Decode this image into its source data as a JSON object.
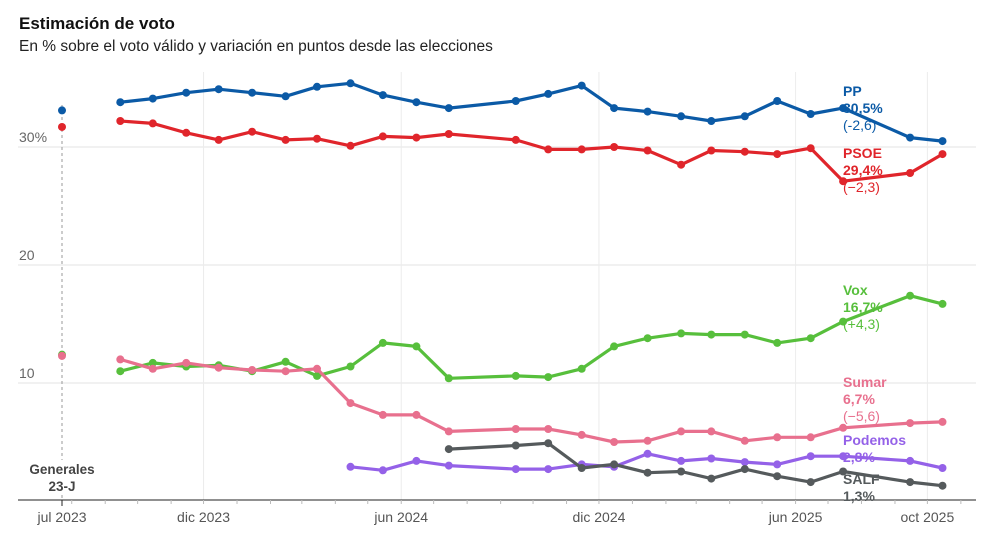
{
  "title": "Estimación de voto",
  "subtitle": "En % sobre el voto válido y variación en puntos desde las elecciones",
  "chart_data": {
    "type": "line",
    "title": "Estimación de voto",
    "subtitle": "En % sobre el voto válido y variación en puntos desde las elecciones",
    "xlabel": "",
    "ylabel": "",
    "ylim": [
      1,
      36
    ],
    "xlim": [
      "2023-07-23",
      "2025-11-15"
    ],
    "y_ticks": [
      {
        "value": 30,
        "label": "30%"
      },
      {
        "value": 20,
        "label": "20"
      },
      {
        "value": 10,
        "label": "10"
      }
    ],
    "x_ticks": [
      {
        "date": "2023-07-23",
        "label": "jul 2023"
      },
      {
        "date": "2023-12-01",
        "label": "dic 2023"
      },
      {
        "date": "2024-06-01",
        "label": "jun 2024"
      },
      {
        "date": "2024-12-01",
        "label": "dic 2024"
      },
      {
        "date": "2025-06-01",
        "label": "jun 2025"
      },
      {
        "date": "2025-10-01",
        "label": "oct 2025"
      }
    ],
    "grid": true,
    "election": {
      "date": "2023-07-23",
      "label_lines": [
        "Generales",
        "23-J"
      ],
      "results": [
        {
          "name": "PP",
          "value": 33.1,
          "color": "#0b5aa6"
        },
        {
          "name": "PSOE",
          "value": 31.7,
          "color": "#e0252b"
        },
        {
          "name": "Vox",
          "value": 12.4,
          "color": "#57bf3c"
        },
        {
          "name": "Sumar",
          "value": 12.3,
          "color": "#e8708e"
        }
      ]
    },
    "series": [
      {
        "name": "PP",
        "value_label": "30,5%",
        "change_label": "(-2,6)",
        "color": "#0b5aa6",
        "points": [
          [
            "2023-09-15",
            33.8
          ],
          [
            "2023-10-15",
            34.1
          ],
          [
            "2023-11-15",
            34.6
          ],
          [
            "2023-12-15",
            34.9
          ],
          [
            "2024-01-15",
            34.6
          ],
          [
            "2024-02-15",
            34.3
          ],
          [
            "2024-03-15",
            35.1
          ],
          [
            "2024-04-15",
            35.4
          ],
          [
            "2024-05-15",
            34.4
          ],
          [
            "2024-06-15",
            33.8
          ],
          [
            "2024-07-15",
            33.3
          ],
          [
            "2024-09-15",
            33.9
          ],
          [
            "2024-10-15",
            34.5
          ],
          [
            "2024-11-15",
            35.2
          ],
          [
            "2024-12-15",
            33.3
          ],
          [
            "2025-01-15",
            33.0
          ],
          [
            "2025-02-15",
            32.6
          ],
          [
            "2025-03-15",
            32.2
          ],
          [
            "2025-04-15",
            32.6
          ],
          [
            "2025-05-15",
            33.9
          ],
          [
            "2025-06-15",
            32.8
          ],
          [
            "2025-07-15",
            33.3
          ],
          [
            "2025-09-15",
            30.8
          ],
          [
            "2025-10-15",
            30.5
          ]
        ]
      },
      {
        "name": "PSOE",
        "value_label": "29,4%",
        "change_label": "(−2,3)",
        "color": "#e0252b",
        "points": [
          [
            "2023-09-15",
            32.2
          ],
          [
            "2023-10-15",
            32.0
          ],
          [
            "2023-11-15",
            31.2
          ],
          [
            "2023-12-15",
            30.6
          ],
          [
            "2024-01-15",
            31.3
          ],
          [
            "2024-02-15",
            30.6
          ],
          [
            "2024-03-15",
            30.7
          ],
          [
            "2024-04-15",
            30.1
          ],
          [
            "2024-05-15",
            30.9
          ],
          [
            "2024-06-15",
            30.8
          ],
          [
            "2024-07-15",
            31.1
          ],
          [
            "2024-09-15",
            30.6
          ],
          [
            "2024-10-15",
            29.8
          ],
          [
            "2024-11-15",
            29.8
          ],
          [
            "2024-12-15",
            30.0
          ],
          [
            "2025-01-15",
            29.7
          ],
          [
            "2025-02-15",
            28.5
          ],
          [
            "2025-03-15",
            29.7
          ],
          [
            "2025-04-15",
            29.6
          ],
          [
            "2025-05-15",
            29.4
          ],
          [
            "2025-06-15",
            29.9
          ],
          [
            "2025-07-15",
            27.1
          ],
          [
            "2025-09-15",
            27.8
          ],
          [
            "2025-10-15",
            29.4
          ]
        ]
      },
      {
        "name": "Vox",
        "value_label": "16,7%",
        "change_label": "(+4,3)",
        "color": "#57bf3c",
        "points": [
          [
            "2023-09-15",
            11.0
          ],
          [
            "2023-10-15",
            11.7
          ],
          [
            "2023-11-15",
            11.4
          ],
          [
            "2023-12-15",
            11.5
          ],
          [
            "2024-01-15",
            11.0
          ],
          [
            "2024-02-15",
            11.8
          ],
          [
            "2024-03-15",
            10.6
          ],
          [
            "2024-04-15",
            11.4
          ],
          [
            "2024-05-15",
            13.4
          ],
          [
            "2024-06-15",
            13.1
          ],
          [
            "2024-07-15",
            10.4
          ],
          [
            "2024-09-15",
            10.6
          ],
          [
            "2024-10-15",
            10.5
          ],
          [
            "2024-11-15",
            11.2
          ],
          [
            "2024-12-15",
            13.1
          ],
          [
            "2025-01-15",
            13.8
          ],
          [
            "2025-02-15",
            14.2
          ],
          [
            "2025-03-15",
            14.1
          ],
          [
            "2025-04-15",
            14.1
          ],
          [
            "2025-05-15",
            13.4
          ],
          [
            "2025-06-15",
            13.8
          ],
          [
            "2025-07-15",
            15.2
          ],
          [
            "2025-09-15",
            17.4
          ],
          [
            "2025-10-15",
            16.7
          ]
        ]
      },
      {
        "name": "Sumar",
        "value_label": "6,7%",
        "change_label": "(−5,6)",
        "color": "#e8708e",
        "points": [
          [
            "2023-09-15",
            12.0
          ],
          [
            "2023-10-15",
            11.2
          ],
          [
            "2023-11-15",
            11.7
          ],
          [
            "2023-12-15",
            11.3
          ],
          [
            "2024-01-15",
            11.1
          ],
          [
            "2024-02-15",
            11.0
          ],
          [
            "2024-03-15",
            11.2
          ],
          [
            "2024-04-15",
            8.3
          ],
          [
            "2024-05-15",
            7.3
          ],
          [
            "2024-06-15",
            7.3
          ],
          [
            "2024-07-15",
            5.9
          ],
          [
            "2024-09-15",
            6.1
          ],
          [
            "2024-10-15",
            6.1
          ],
          [
            "2024-11-15",
            5.6
          ],
          [
            "2024-12-15",
            5.0
          ],
          [
            "2025-01-15",
            5.1
          ],
          [
            "2025-02-15",
            5.9
          ],
          [
            "2025-03-15",
            5.9
          ],
          [
            "2025-04-15",
            5.1
          ],
          [
            "2025-05-15",
            5.4
          ],
          [
            "2025-06-15",
            5.4
          ],
          [
            "2025-07-15",
            6.2
          ],
          [
            "2025-09-15",
            6.6
          ],
          [
            "2025-10-15",
            6.7
          ]
        ]
      },
      {
        "name": "Podemos",
        "value_label": "2,8%",
        "change_label": "",
        "color": "#9461e8",
        "points": [
          [
            "2024-04-15",
            2.9
          ],
          [
            "2024-05-15",
            2.6
          ],
          [
            "2024-06-15",
            3.4
          ],
          [
            "2024-07-15",
            3.0
          ],
          [
            "2024-09-15",
            2.7
          ],
          [
            "2024-10-15",
            2.7
          ],
          [
            "2024-11-15",
            3.1
          ],
          [
            "2024-12-15",
            2.9
          ],
          [
            "2025-01-15",
            4.0
          ],
          [
            "2025-02-15",
            3.4
          ],
          [
            "2025-03-15",
            3.6
          ],
          [
            "2025-04-15",
            3.3
          ],
          [
            "2025-05-15",
            3.1
          ],
          [
            "2025-06-15",
            3.8
          ],
          [
            "2025-07-15",
            3.8
          ],
          [
            "2025-09-15",
            3.4
          ],
          [
            "2025-10-15",
            2.8
          ]
        ]
      },
      {
        "name": "SALF",
        "value_label": "1,3%",
        "change_label": "",
        "color": "#555a5c",
        "points": [
          [
            "2024-07-15",
            4.4
          ],
          [
            "2024-09-15",
            4.7
          ],
          [
            "2024-10-15",
            4.9
          ],
          [
            "2024-11-15",
            2.8
          ],
          [
            "2024-12-15",
            3.1
          ],
          [
            "2025-01-15",
            2.4
          ],
          [
            "2025-02-15",
            2.5
          ],
          [
            "2025-03-15",
            1.9
          ],
          [
            "2025-04-15",
            2.7
          ],
          [
            "2025-05-15",
            2.1
          ],
          [
            "2025-06-15",
            1.6
          ],
          [
            "2025-07-15",
            2.5
          ],
          [
            "2025-09-15",
            1.6
          ],
          [
            "2025-10-15",
            1.3
          ]
        ]
      }
    ]
  }
}
